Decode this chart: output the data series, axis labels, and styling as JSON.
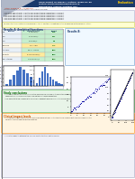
{
  "background": "#ffffff",
  "title_line1": "easurement of salivary cortisol levels by an",
  "title_line2": "mated electrochemiluminescence",
  "title_line3": "munoassay (ADVIA Centaur XP)",
  "title_right": "Evaluation",
  "author_line": "Author Name, M.D.; co-authors",
  "affil_line": "Institution & St. Villere Health For the Acquisition e-mail",
  "header_gray": "#d0d0d0",
  "header_blue": "#1a3a6b",
  "abstract_bg": "#f0f4f8",
  "abstract_border": "#aaaacc",
  "yellow_bg": "#ffffd0",
  "yellow_border": "#cccc44",
  "section_header_color": "#1a3a6b",
  "results_a_header": "#2255aa",
  "table_header_bg": "#c8d8f0",
  "table_col1_bg": "#e0e8f8",
  "table_green": "#c6efce",
  "table_yellow": "#ffeb9c",
  "table_red": "#ffc7ce",
  "scatter_dot_color": "#000080",
  "bar_color": "#4472c4",
  "bar_values": [
    3,
    8,
    14,
    20,
    25,
    22,
    17,
    12,
    8,
    5,
    3,
    2
  ],
  "bar_values2": [
    2,
    5,
    9,
    12,
    8,
    6,
    4,
    3,
    2,
    1
  ],
  "green_box_bg": "#e8f4e8",
  "green_box_border": "#44aa44",
  "orange_box_bg": "#fff4e0",
  "orange_box_border": "#ff8800",
  "footer_bg": "#f0f0f8",
  "footer_border": "#8888aa",
  "scatter_box_bg": "#f8f8ff",
  "scatter_box_border": "#aaaacc",
  "results_b_bg": "#f0f8ff",
  "results_b_border": "#6699cc"
}
